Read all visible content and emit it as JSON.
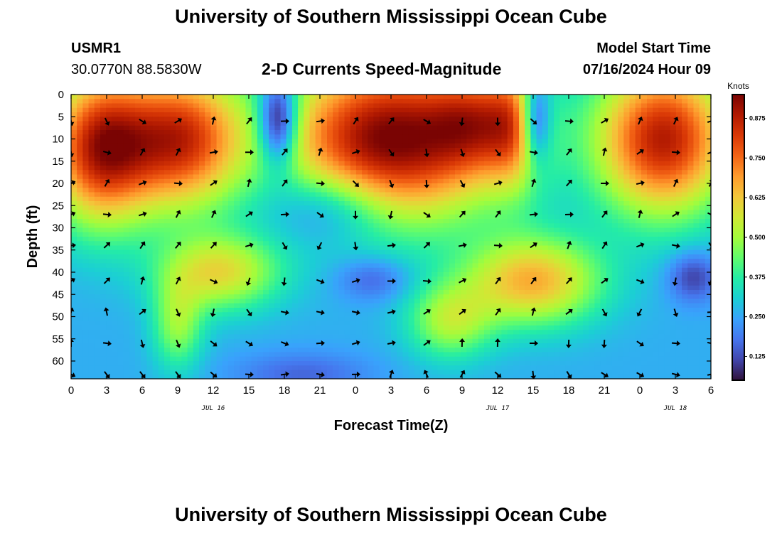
{
  "header": {
    "title": "University of Southern Mississippi Ocean Cube",
    "station": "USMR1",
    "coords": "30.0770N  88.5830W",
    "subtitle": "2-D Currents Speed-Magnitude",
    "model_label": "Model Start Time",
    "model_time": "07/16/2024 Hour 09"
  },
  "footer": {
    "title": "University of Southern Mississippi Ocean Cube"
  },
  "colors": {
    "scale": [
      "#30123b",
      "#4145ab",
      "#4675ed",
      "#39a2fc",
      "#1bcfd4",
      "#24eca6",
      "#61fc6c",
      "#a4fc3b",
      "#d1e834",
      "#f3c63a",
      "#fe9b2d",
      "#f36315",
      "#d93806",
      "#b11901",
      "#7a0403"
    ]
  },
  "chart_data": {
    "type": "heatmap",
    "title": "2-D Currents Speed-Magnitude",
    "xlabel": "Forecast Time(Z)",
    "ylabel": "Depth (ft)",
    "x_ticks": [
      "0",
      "3",
      "6",
      "9",
      "12",
      "15",
      "18",
      "21",
      "0",
      "3",
      "6",
      "9",
      "12",
      "15",
      "18",
      "21",
      "0",
      "3",
      "6"
    ],
    "x_range_hours": [
      0,
      54
    ],
    "date_labels": [
      {
        "label": "JUL 16",
        "hour": 12
      },
      {
        "label": "JUL 17",
        "hour": 36
      },
      {
        "label": "JUL 18",
        "hour": 51
      }
    ],
    "y_ticks": [
      "0",
      "5",
      "10",
      "15",
      "20",
      "25",
      "30",
      "35",
      "40",
      "45",
      "50",
      "55",
      "60"
    ],
    "y_range_ft": [
      0,
      64
    ],
    "y_inverted": true,
    "colorbar": {
      "title": "Knots",
      "ticks": [
        "0.875",
        "0.750",
        "0.625",
        "0.500",
        "0.375",
        "0.250",
        "0.125"
      ],
      "tick_values": [
        0.875,
        0.75,
        0.625,
        0.5,
        0.375,
        0.25,
        0.125
      ],
      "range": [
        0.05,
        0.95
      ]
    },
    "speed_blobs": [
      {
        "hour": 2.5,
        "depth": 12,
        "sh": 3.2,
        "sd": 12,
        "knots": 0.62
      },
      {
        "hour": 9.5,
        "depth": 10,
        "sh": 3.5,
        "sd": 11,
        "knots": 0.55
      },
      {
        "hour": 27,
        "depth": 10,
        "sh": 6.5,
        "sd": 13,
        "knots": 0.7
      },
      {
        "hour": 34,
        "depth": 6,
        "sh": 2.5,
        "sd": 8,
        "knots": 0.25
      },
      {
        "hour": 37.5,
        "depth": 7,
        "sh": 1.8,
        "sd": 10,
        "knots": 0.3
      },
      {
        "hour": 50,
        "depth": 10,
        "sh": 4,
        "sd": 12,
        "knots": 0.62
      },
      {
        "hour": 17.5,
        "depth": 6,
        "sh": 1.2,
        "sd": 7,
        "knots": -0.4
      },
      {
        "hour": 39.2,
        "depth": 6,
        "sh": 0.9,
        "sd": 7,
        "knots": -0.35
      },
      {
        "hour": 22,
        "depth": 25,
        "sh": 3.5,
        "sd": 6,
        "knots": -0.18
      },
      {
        "hour": 12.5,
        "depth": 40,
        "sh": 3.5,
        "sd": 6,
        "knots": 0.33
      },
      {
        "hour": 9,
        "depth": 52,
        "sh": 1.5,
        "sd": 7,
        "knots": 0.22
      },
      {
        "hour": 39,
        "depth": 42,
        "sh": 4,
        "sd": 7,
        "knots": 0.4
      },
      {
        "hour": 32,
        "depth": 51,
        "sh": 2.5,
        "sd": 6,
        "knots": 0.25
      },
      {
        "hour": 25.5,
        "depth": 41.5,
        "sh": 2.2,
        "sd": 3.5,
        "knots": -0.12
      },
      {
        "hour": 52.5,
        "depth": 41,
        "sh": 1.5,
        "sd": 4,
        "knots": -0.16
      },
      {
        "hour": 19.5,
        "depth": 63,
        "sh": 4,
        "sd": 3.5,
        "knots": -0.1
      }
    ],
    "vector_grid": {
      "hours": [
        0,
        3,
        6,
        9,
        12,
        15,
        18,
        21,
        24,
        27,
        30,
        33,
        36,
        39,
        42,
        45,
        48,
        51,
        54
      ],
      "depths": [
        6,
        13,
        20,
        27,
        34,
        42,
        49,
        56,
        63
      ],
      "angle_field_params": [
        {
          "a": 40,
          "fh": 0.35,
          "fd": 0.2,
          "ph": 0.3
        },
        {
          "a": 60,
          "fh": 0.18,
          "fd": 0.08,
          "ph": 1.1
        },
        {
          "a": 25,
          "fh": 0.5,
          "fd": 0.4,
          "ph": 2.0
        }
      ]
    }
  }
}
